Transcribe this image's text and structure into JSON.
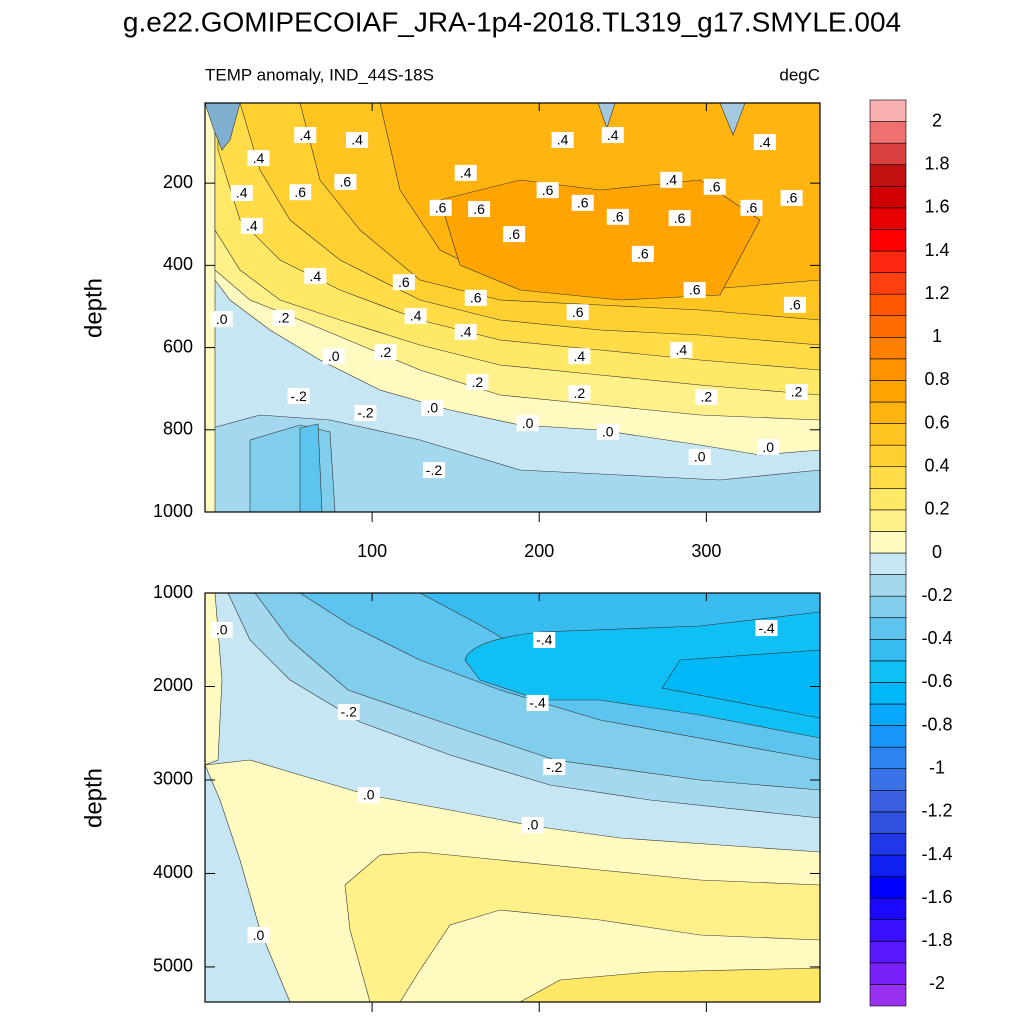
{
  "chart_data": [
    {
      "type": "contour",
      "title": "g.e22.GOMIPECOIAF_JRA-1p4-2018.TL319_g17.SMYLE.004",
      "subtitle_left": "TEMP anomaly, IND_44S-18S",
      "subtitle_right": "degC",
      "y_label": "depth",
      "xlim": [
        0,
        368
      ],
      "ylim": [
        5,
        1000
      ],
      "xticks": [
        100,
        200,
        300
      ],
      "yticks": [
        200,
        400,
        600,
        800,
        1000
      ],
      "x_tick_labels": true,
      "contour_labels": [
        {
          "text": ".4",
          "x": 60,
          "y": 83
        },
        {
          "text": ".4",
          "x": 91,
          "y": 95
        },
        {
          "text": ".4",
          "x": 32,
          "y": 139
        },
        {
          "text": ".4",
          "x": 22,
          "y": 224
        },
        {
          "text": ".6",
          "x": 57,
          "y": 222
        },
        {
          "text": ".6",
          "x": 84,
          "y": 197
        },
        {
          "text": ".4",
          "x": 156,
          "y": 175
        },
        {
          "text": ".4",
          "x": 214,
          "y": 95
        },
        {
          "text": ".4",
          "x": 244,
          "y": 83
        },
        {
          "text": ".4",
          "x": 335,
          "y": 100
        },
        {
          "text": ".4",
          "x": 28,
          "y": 304
        },
        {
          "text": ".6",
          "x": 141,
          "y": 260
        },
        {
          "text": ".6",
          "x": 164,
          "y": 263
        },
        {
          "text": ".6",
          "x": 205,
          "y": 217
        },
        {
          "text": ".6",
          "x": 226,
          "y": 248
        },
        {
          "text": ".4",
          "x": 279,
          "y": 192
        },
        {
          "text": ".6",
          "x": 305,
          "y": 209
        },
        {
          "text": ".6",
          "x": 327,
          "y": 260
        },
        {
          "text": ".6",
          "x": 351,
          "y": 236
        },
        {
          "text": ".6",
          "x": 185,
          "y": 324
        },
        {
          "text": ".6",
          "x": 247,
          "y": 282
        },
        {
          "text": ".6",
          "x": 284,
          "y": 285
        },
        {
          "text": ".6",
          "x": 262,
          "y": 372
        },
        {
          "text": ".4",
          "x": 66,
          "y": 426
        },
        {
          "text": ".6",
          "x": 119,
          "y": 441
        },
        {
          "text": ".6",
          "x": 162,
          "y": 479
        },
        {
          "text": ".6",
          "x": 293,
          "y": 460
        },
        {
          "text": ".6",
          "x": 353,
          "y": 496
        },
        {
          "text": ".0",
          "x": 10,
          "y": 531
        },
        {
          "text": ".2",
          "x": 47,
          "y": 528
        },
        {
          "text": ".4",
          "x": 126,
          "y": 523
        },
        {
          "text": ".4",
          "x": 156,
          "y": 562
        },
        {
          "text": ".6",
          "x": 223,
          "y": 514
        },
        {
          "text": ".0",
          "x": 77,
          "y": 621
        },
        {
          "text": ".2",
          "x": 108,
          "y": 611
        },
        {
          "text": ".4",
          "x": 224,
          "y": 621
        },
        {
          "text": ".4",
          "x": 285,
          "y": 606
        },
        {
          "text": ".2",
          "x": 163,
          "y": 684
        },
        {
          "text": "-.2",
          "x": 56,
          "y": 718
        },
        {
          "text": "-.2",
          "x": 96,
          "y": 759
        },
        {
          "text": ".0",
          "x": 136,
          "y": 747
        },
        {
          "text": ".2",
          "x": 224,
          "y": 711
        },
        {
          "text": ".2",
          "x": 300,
          "y": 720
        },
        {
          "text": ".2",
          "x": 354,
          "y": 708
        },
        {
          "text": ".0",
          "x": 193,
          "y": 784
        },
        {
          "text": ".0",
          "x": 241,
          "y": 805
        },
        {
          "text": ".0",
          "x": 296,
          "y": 866
        },
        {
          "text": ".0",
          "x": 337,
          "y": 842
        },
        {
          "text": "-.2",
          "x": 137,
          "y": 898
        }
      ]
    },
    {
      "type": "contour",
      "y_label": "depth",
      "xlim": [
        0,
        368
      ],
      "ylim": [
        1000,
        5375
      ],
      "xticks": [
        100,
        200,
        300
      ],
      "yticks": [
        1000,
        2000,
        3000,
        4000,
        5000
      ],
      "x_tick_labels": false,
      "contour_labels": [
        {
          "text": ".0",
          "x": 10,
          "y": 1396
        },
        {
          "text": "-.4",
          "x": 203,
          "y": 1503
        },
        {
          "text": "-.4",
          "x": 336,
          "y": 1375
        },
        {
          "text": "-.4",
          "x": 199,
          "y": 2177
        },
        {
          "text": "-.2",
          "x": 86,
          "y": 2273
        },
        {
          "text": "-.2",
          "x": 209,
          "y": 2862
        },
        {
          "text": ".0",
          "x": 98,
          "y": 3161
        },
        {
          "text": ".0",
          "x": 196,
          "y": 3482
        },
        {
          "text": ".0",
          "x": 32,
          "y": 4659
        }
      ]
    },
    {
      "type": "colorbar",
      "levels": [
        -2,
        -1.9,
        -1.8,
        -1.7,
        -1.6,
        -1.5,
        -1.4,
        -1.3,
        -1.2,
        -1.1,
        -1,
        -0.9,
        -0.8,
        -0.7,
        -0.6,
        -0.5,
        -0.4,
        -0.3,
        -0.2,
        -0.1,
        0,
        0.1,
        0.2,
        0.3,
        0.4,
        0.5,
        0.6,
        0.7,
        0.8,
        0.9,
        1,
        1.1,
        1.2,
        1.3,
        1.4,
        1.5,
        1.6,
        1.7,
        1.8,
        1.9,
        2
      ],
      "colors": [
        "#9a30f0",
        "#7a20f8",
        "#5a18ff",
        "#3a10ff",
        "#1a08ff",
        "#0000ff",
        "#1020f0",
        "#2038e8",
        "#3050e0",
        "#3a60e0",
        "#3a72e8",
        "#2c84f0",
        "#1896f8",
        "#08a8ff",
        "#00b8f8",
        "#10c0f5",
        "#38bcf0",
        "#5cc4ee",
        "#80cdec",
        "#a4d8ee",
        "#c6e6f4",
        "#fffac0",
        "#fff08a",
        "#ffe866",
        "#ffdc48",
        "#ffd030",
        "#ffc420",
        "#ffb410",
        "#ffa400",
        "#ff9400",
        "#ff8000",
        "#ff6c00",
        "#ff5800",
        "#ff4010",
        "#ff2810",
        "#ff0000",
        "#e80000",
        "#d00000",
        "#c01010",
        "#d84040",
        "#f07070",
        "#f8b0b0"
      ],
      "ticks": [
        -2,
        -1.8,
        -1.6,
        -1.4,
        -1.2,
        -1,
        -0.8,
        -0.6,
        -0.4,
        -0.2,
        0,
        0.2,
        0.4,
        0.6,
        0.8,
        1,
        1.2,
        1.4,
        1.6,
        1.8,
        2
      ]
    }
  ]
}
